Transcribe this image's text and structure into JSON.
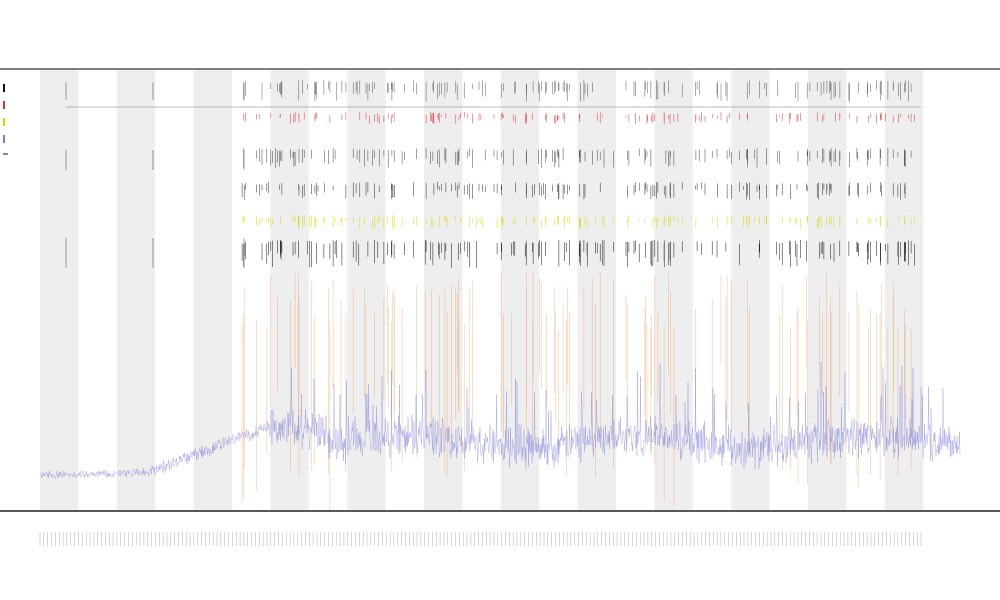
{
  "chart_data": {
    "type": "line",
    "title_lines": [
      "",
      "",
      ""
    ],
    "xlabel": "",
    "ylabel": "",
    "grid": false,
    "legend_position": "top-left",
    "colors": {
      "line": "#7b7bdc",
      "spike_orange": "#e8893a",
      "spike_red": "#e03030",
      "spike_yellow": "#d8d800",
      "spike_black": "#111111",
      "band": "#eeeeee",
      "axis": "#555555"
    },
    "series": [
      {
        "name": "",
        "color": "#111111"
      },
      {
        "name": "",
        "color": "#e03030"
      },
      {
        "name": "",
        "color": "#d8d800"
      },
      {
        "name": "",
        "color": "#7b7bdc"
      }
    ],
    "x_tick_count": 230,
    "band_count": 23,
    "annotation": ""
  }
}
